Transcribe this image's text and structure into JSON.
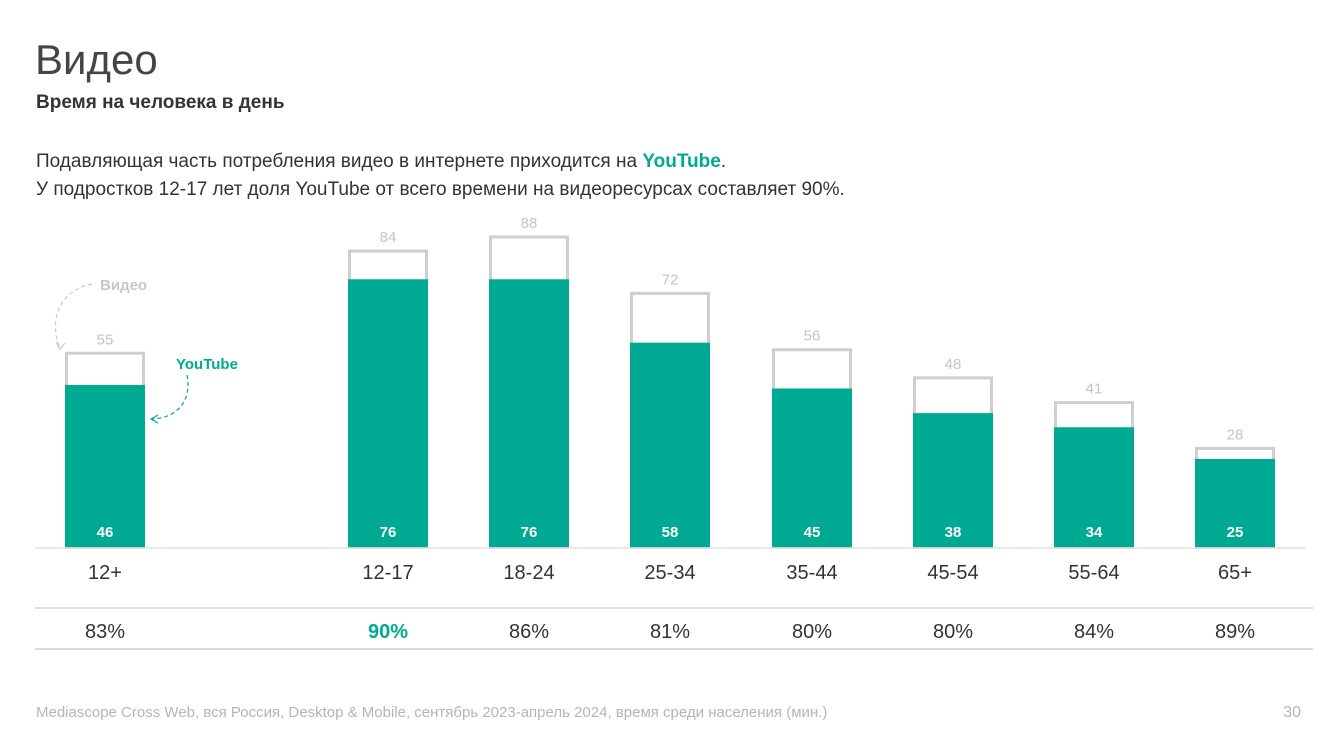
{
  "header": {
    "title": "Видео",
    "subtitle": "Время на человека в день",
    "lead_line1_prefix": "Подавляющая часть потребления видео в интернете приходится на ",
    "lead_line1_highlight": "YouTube",
    "lead_line1_suffix": ".",
    "lead_line2": "У подростков 12-17 лет доля YouTube от всего времени на видеоресурсах составляет 90%."
  },
  "chart_data": {
    "type": "bar",
    "categories": [
      "12+",
      "12-17",
      "18-24",
      "25-34",
      "35-44",
      "45-54",
      "55-64",
      "65+"
    ],
    "series": [
      {
        "name": "Видео",
        "values": [
          55,
          84,
          88,
          72,
          56,
          48,
          41,
          28
        ]
      },
      {
        "name": "YouTube",
        "values": [
          46,
          76,
          76,
          58,
          45,
          38,
          34,
          25
        ]
      }
    ],
    "youtube_share": [
      "83%",
      "90%",
      "86%",
      "81%",
      "80%",
      "80%",
      "84%",
      "89%"
    ],
    "highlight_share_index": 1,
    "legend": {
      "video": "Видео",
      "youtube": "YouTube"
    },
    "ylim": [
      0,
      88
    ]
  },
  "colors": {
    "youtube": "#00a991",
    "video_outline": "#cfcfcf",
    "label_grey": "#c4c4c4"
  },
  "footer": {
    "source": "Mediascope Cross Web, вся Россия, Desktop & Mobile, сентябрь 2023-апрель 2024, время среди населения (мин.)",
    "page": "30"
  }
}
